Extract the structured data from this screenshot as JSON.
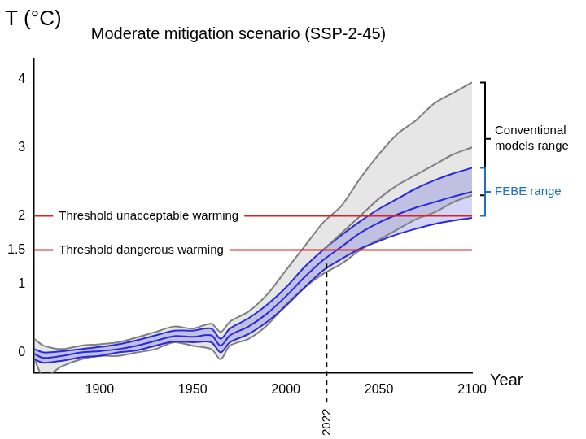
{
  "chart_data": {
    "type": "line",
    "title": "Moderate mitigation scenario (SSP-2-45)",
    "y_label": "T (°C)",
    "x_label": "Year",
    "x": [
      1865,
      1870,
      1880,
      1890,
      1900,
      1910,
      1920,
      1930,
      1940,
      1950,
      1960,
      1965,
      1970,
      1980,
      1990,
      2000,
      2010,
      2020,
      2030,
      2040,
      2050,
      2060,
      2070,
      2080,
      2090,
      2100
    ],
    "series": [
      {
        "type": "band",
        "color": "#808080",
        "line_style": "solid",
        "values": [
          0.2,
          0.1,
          0.05,
          0.1,
          0.12,
          0.15,
          0.22,
          0.3,
          0.38,
          0.35,
          0.42,
          0.3,
          0.45,
          0.6,
          0.85,
          1.2,
          1.55,
          1.9,
          2.15,
          2.55,
          2.9,
          3.2,
          3.4,
          3.65,
          3.8,
          3.95
        ],
        "lower": [
          -0.1,
          -0.35,
          -0.2,
          -0.1,
          -0.05,
          -0.05,
          0.0,
          0.05,
          0.15,
          0.1,
          0.05,
          -0.1,
          0.1,
          0.2,
          0.4,
          0.7,
          0.95,
          1.15,
          1.3,
          1.5,
          1.65,
          1.8,
          1.95,
          2.05,
          2.2,
          2.3
        ]
      },
      {
        "type": "band",
        "color": "#2a2ad8",
        "line_style": "solid",
        "values": [
          0.05,
          0.0,
          0.02,
          0.05,
          0.08,
          0.12,
          0.18,
          0.25,
          0.32,
          0.32,
          0.35,
          0.2,
          0.35,
          0.5,
          0.7,
          0.95,
          1.25,
          1.5,
          1.72,
          1.92,
          2.1,
          2.25,
          2.4,
          2.52,
          2.62,
          2.7
        ],
        "lower": [
          -0.1,
          -0.15,
          -0.12,
          -0.07,
          -0.05,
          0.0,
          0.03,
          0.1,
          0.16,
          0.15,
          0.15,
          0.0,
          0.15,
          0.27,
          0.45,
          0.68,
          0.95,
          1.2,
          1.37,
          1.52,
          1.63,
          1.73,
          1.81,
          1.88,
          1.93,
          1.97
        ]
      },
      {
        "type": "line",
        "color": "#808080",
        "line_style": "solid",
        "values": [
          null,
          null,
          null,
          null,
          null,
          null,
          null,
          null,
          null,
          null,
          null,
          null,
          null,
          null,
          null,
          null,
          null,
          1.5,
          1.75,
          2.0,
          2.25,
          2.45,
          2.6,
          2.75,
          2.9,
          3.0
        ]
      },
      {
        "type": "line",
        "color": "#2a2ad8",
        "line_style": "solid",
        "values": [
          -0.02,
          -0.08,
          -0.05,
          0.0,
          0.02,
          0.05,
          0.1,
          0.17,
          0.24,
          0.23,
          0.25,
          0.1,
          0.25,
          0.38,
          0.57,
          0.82,
          1.1,
          1.35,
          1.55,
          1.75,
          1.9,
          2.02,
          2.12,
          2.2,
          2.28,
          2.35
        ]
      }
    ],
    "xlim": [
      1865,
      2100
    ],
    "xticks": [
      1900,
      1950,
      2000,
      2050,
      2100
    ],
    "ylim": [
      -0.3,
      4.3
    ],
    "yticks": [
      0,
      1,
      1.5,
      2,
      3,
      4
    ],
    "grid": false,
    "annotations": [
      {
        "type": "hline",
        "y": 2,
        "text": "Threshold unacceptable warming",
        "color": "#e02020",
        "line_style": "solid"
      },
      {
        "type": "hline",
        "y": 1.5,
        "text": "Threshold dangerous warming",
        "color": "#e02020",
        "line_style": "solid"
      },
      {
        "type": "vline",
        "x": 2022,
        "from": 1.3,
        "text": "2022",
        "color": "#000000",
        "line_style": "dashed"
      },
      {
        "type": "bracket",
        "from": 2.3,
        "to": 3.95,
        "text": "Conventional models range",
        "color": "#000000"
      },
      {
        "type": "bracket",
        "from": 2.0,
        "to": 2.7,
        "text": "FEBE range",
        "color": "#1f6fc0"
      }
    ]
  }
}
